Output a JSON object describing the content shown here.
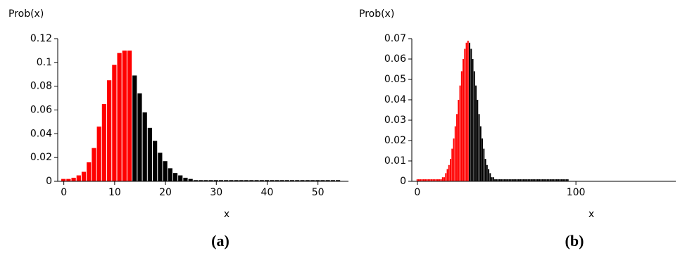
{
  "chart_data": [
    {
      "type": "bar",
      "y_label": "Prob(x)",
      "x_label": "x",
      "caption": "(a)",
      "xlim": [
        -1.2,
        56
      ],
      "xticks": [
        0,
        10,
        20,
        30,
        40,
        50
      ],
      "ylim": [
        0,
        0.12
      ],
      "yticks": [
        0,
        0.02,
        0.04,
        0.06,
        0.08,
        0.1,
        0.12
      ],
      "series": [
        {
          "color": "#ff0000",
          "x": [
            0,
            1,
            2,
            3,
            4,
            5,
            6,
            7,
            8,
            9,
            10,
            11,
            12,
            13
          ],
          "values": [
            0.002,
            0.002,
            0.003,
            0.005,
            0.008,
            0.016,
            0.028,
            0.046,
            0.065,
            0.085,
            0.098,
            0.108,
            0.11,
            0.11
          ]
        },
        {
          "color": "#000000",
          "x": [
            14,
            15,
            16,
            17,
            18,
            19,
            20,
            21,
            22,
            23,
            24,
            25,
            26,
            27,
            28,
            29,
            30,
            31,
            32,
            33,
            34,
            35,
            36,
            37,
            38,
            39,
            40,
            41,
            42,
            43,
            44,
            45,
            46,
            47,
            48,
            49,
            50,
            51,
            52,
            53,
            54
          ],
          "values": [
            0.089,
            0.074,
            0.058,
            0.045,
            0.034,
            0.024,
            0.017,
            0.011,
            0.007,
            0.005,
            0.003,
            0.002,
            0.001,
            0.001,
            0.001,
            0.001,
            0.001,
            0.001,
            0.001,
            0.001,
            0.001,
            0.001,
            0.001,
            0.001,
            0.001,
            0.001,
            0.001,
            0.001,
            0.001,
            0.001,
            0.001,
            0.001,
            0.001,
            0.001,
            0.001,
            0.001,
            0.001,
            0.001,
            0.001,
            0.001,
            0.001
          ]
        }
      ]
    },
    {
      "type": "bar",
      "y_label": "Prob(x)",
      "x_label": "x",
      "caption": "(b)",
      "xlim": [
        -3.5,
        163
      ],
      "xticks": [
        0,
        100
      ],
      "ylim": [
        0,
        0.07
      ],
      "yticks": [
        0,
        0.01,
        0.02,
        0.03,
        0.04,
        0.05,
        0.06,
        0.07
      ],
      "series": [
        {
          "color": "#ff0000",
          "x": [
            0,
            1,
            2,
            3,
            4,
            5,
            6,
            7,
            8,
            9,
            10,
            11,
            12,
            13,
            14,
            15,
            16,
            17,
            18,
            19,
            20,
            21,
            22,
            23,
            24,
            25,
            26,
            27,
            28,
            29,
            30,
            31,
            32
          ],
          "values": [
            0.001,
            0.001,
            0.001,
            0.001,
            0.001,
            0.001,
            0.001,
            0.001,
            0.001,
            0.001,
            0.001,
            0.001,
            0.001,
            0.001,
            0.001,
            0.001,
            0.002,
            0.002,
            0.004,
            0.006,
            0.008,
            0.011,
            0.016,
            0.021,
            0.027,
            0.033,
            0.04,
            0.047,
            0.054,
            0.06,
            0.065,
            0.068,
            0.069
          ]
        },
        {
          "color": "#000000",
          "x": [
            33,
            34,
            35,
            36,
            37,
            38,
            39,
            40,
            41,
            42,
            43,
            44,
            45,
            46,
            47,
            48,
            49,
            50,
            51,
            52,
            53,
            54,
            55,
            56,
            57,
            58,
            59,
            60,
            61,
            62,
            63,
            64,
            65,
            66,
            67,
            68,
            69,
            70,
            71,
            72,
            73,
            74,
            75,
            76,
            77,
            78,
            79,
            80,
            81,
            82,
            83,
            84,
            85,
            86,
            87,
            88,
            89,
            90,
            91,
            92,
            93,
            94,
            95
          ],
          "values": [
            0.068,
            0.065,
            0.06,
            0.054,
            0.047,
            0.04,
            0.033,
            0.027,
            0.021,
            0.016,
            0.011,
            0.008,
            0.006,
            0.004,
            0.002,
            0.002,
            0.001,
            0.001,
            0.001,
            0.001,
            0.001,
            0.001,
            0.001,
            0.001,
            0.001,
            0.001,
            0.001,
            0.001,
            0.001,
            0.001,
            0.001,
            0.001,
            0.001,
            0.001,
            0.001,
            0.001,
            0.001,
            0.001,
            0.001,
            0.001,
            0.001,
            0.001,
            0.001,
            0.001,
            0.001,
            0.001,
            0.001,
            0.001,
            0.001,
            0.001,
            0.001,
            0.001,
            0.001,
            0.001,
            0.001,
            0.001,
            0.001,
            0.001,
            0.001,
            0.001,
            0.001,
            0.001,
            0.001
          ]
        }
      ]
    }
  ]
}
